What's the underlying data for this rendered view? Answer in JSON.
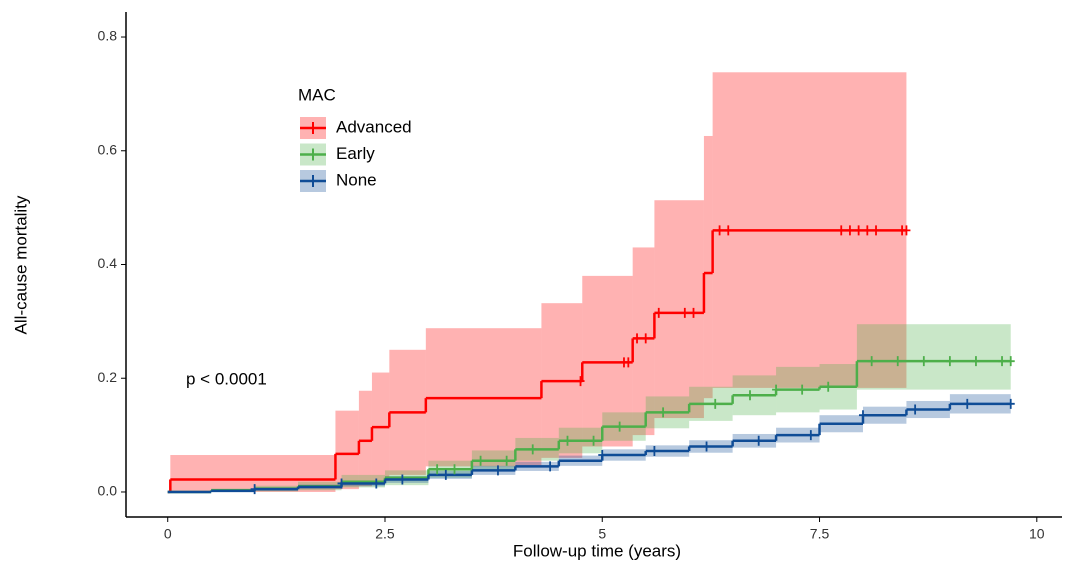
{
  "chart_data": {
    "type": "survival",
    "x_label": "Follow-up time (years)",
    "y_label": "All-cause mortality",
    "annotation": "p < 0.0001",
    "legend_title": "MAC",
    "xlim": [
      -0.48,
      10.29
    ],
    "ylim": [
      -0.044,
      0.844
    ],
    "xticks": [
      0,
      2.5,
      5,
      7.5,
      10
    ],
    "yticks": [
      {
        "value": 0,
        "label": "0.0"
      },
      0.2,
      0.4,
      0.6,
      0.8
    ],
    "series": [
      {
        "name": "Advanced",
        "color": "#ff0000",
        "x": [
          0,
          0.03,
          1.93,
          2.2,
          2.35,
          2.55,
          2.97,
          4.3,
          4.77,
          5.35,
          5.6,
          6.17,
          6.27,
          8.5
        ],
        "values": [
          0,
          0.022,
          0.067,
          0.09,
          0.114,
          0.14,
          0.165,
          0.195,
          0.228,
          0.27,
          0.315,
          0.385,
          0.46,
          0.46
        ],
        "lower": [
          0,
          0,
          0.005,
          0.01,
          0.02,
          0.03,
          0.045,
          0.06,
          0.08,
          0.1,
          0.13,
          0.165,
          0.183,
          0.183
        ],
        "upper": [
          0,
          0.065,
          0.143,
          0.178,
          0.21,
          0.25,
          0.288,
          0.332,
          0.38,
          0.43,
          0.513,
          0.626,
          0.738,
          0.738
        ],
        "censored": [
          4.75,
          5.25,
          5.3,
          5.4,
          5.5,
          5.65,
          5.95,
          6.05,
          6.35,
          6.45,
          7.75,
          7.85,
          7.95,
          8.05,
          8.15,
          8.45,
          8.5
        ]
      },
      {
        "name": "Early",
        "color": "#4daf4a",
        "x": [
          0,
          0.5,
          1.0,
          1.5,
          2.0,
          2.5,
          3.0,
          3.5,
          4.0,
          4.5,
          5.0,
          5.5,
          6.0,
          6.5,
          7.0,
          7.5,
          7.93,
          9.7
        ],
        "values": [
          0,
          0.003,
          0.006,
          0.01,
          0.018,
          0.025,
          0.04,
          0.055,
          0.075,
          0.09,
          0.115,
          0.14,
          0.155,
          0.17,
          0.18,
          0.185,
          0.23,
          0.23
        ],
        "lower": [
          0,
          0,
          0.001,
          0.003,
          0.008,
          0.012,
          0.025,
          0.037,
          0.055,
          0.068,
          0.09,
          0.112,
          0.125,
          0.135,
          0.14,
          0.145,
          0.18,
          0.18
        ],
        "upper": [
          0,
          0.006,
          0.011,
          0.018,
          0.03,
          0.038,
          0.055,
          0.073,
          0.095,
          0.113,
          0.14,
          0.168,
          0.185,
          0.205,
          0.22,
          0.225,
          0.295,
          0.295
        ],
        "censored": [
          3.1,
          3.3,
          3.6,
          3.9,
          4.2,
          4.6,
          4.9,
          5.2,
          5.7,
          6.3,
          6.7,
          7.0,
          7.3,
          7.6,
          8.1,
          8.4,
          8.7,
          9.0,
          9.3,
          9.6,
          9.7
        ]
      },
      {
        "name": "None",
        "color": "#0f4c96",
        "x": [
          0,
          0.5,
          1.0,
          1.5,
          2.0,
          2.5,
          3.0,
          3.5,
          4.0,
          4.5,
          5.0,
          5.5,
          6.0,
          6.5,
          7.0,
          7.5,
          8.0,
          8.5,
          9.0,
          9.7
        ],
        "values": [
          0,
          0.002,
          0.005,
          0.009,
          0.015,
          0.022,
          0.03,
          0.038,
          0.045,
          0.055,
          0.065,
          0.072,
          0.08,
          0.09,
          0.1,
          0.12,
          0.135,
          0.145,
          0.155,
          0.155
        ],
        "lower": [
          0,
          0,
          0.002,
          0.005,
          0.01,
          0.016,
          0.023,
          0.03,
          0.037,
          0.046,
          0.055,
          0.062,
          0.069,
          0.078,
          0.087,
          0.105,
          0.12,
          0.13,
          0.138,
          0.138
        ],
        "upper": [
          0,
          0.004,
          0.008,
          0.013,
          0.02,
          0.028,
          0.037,
          0.046,
          0.053,
          0.064,
          0.075,
          0.082,
          0.091,
          0.102,
          0.113,
          0.135,
          0.15,
          0.16,
          0.172,
          0.172
        ],
        "censored": [
          1.0,
          2.0,
          2.4,
          2.7,
          3.2,
          3.8,
          4.4,
          5.0,
          5.6,
          6.2,
          6.8,
          7.4,
          8.0,
          8.6,
          9.2,
          9.7
        ]
      }
    ]
  }
}
